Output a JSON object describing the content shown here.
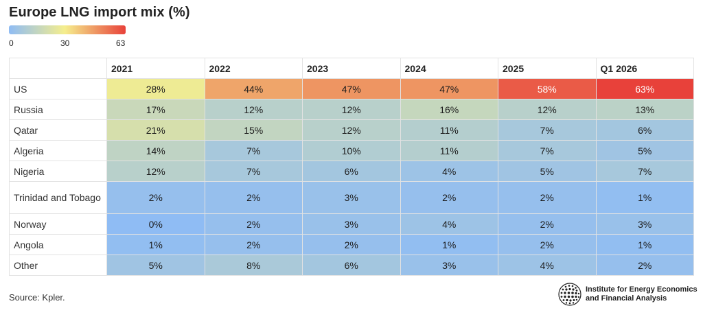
{
  "chart_data": {
    "type": "heatmap",
    "title": "Europe LNG import mix (%)",
    "columns": [
      "2021",
      "2022",
      "2023",
      "2024",
      "2025",
      "Q1 2026"
    ],
    "rows": [
      {
        "label": "US",
        "values": [
          28,
          44,
          47,
          47,
          58,
          63
        ]
      },
      {
        "label": "Russia",
        "values": [
          17,
          12,
          12,
          16,
          12,
          13
        ]
      },
      {
        "label": "Qatar",
        "values": [
          21,
          15,
          12,
          11,
          7,
          6
        ]
      },
      {
        "label": "Algeria",
        "values": [
          14,
          7,
          10,
          11,
          7,
          5
        ]
      },
      {
        "label": "Nigeria",
        "values": [
          12,
          7,
          6,
          4,
          5,
          7
        ]
      },
      {
        "label": "Trinidad and Tobago",
        "values": [
          2,
          2,
          3,
          2,
          2,
          1
        ]
      },
      {
        "label": "Norway",
        "values": [
          0,
          2,
          3,
          4,
          2,
          3
        ]
      },
      {
        "label": "Angola",
        "values": [
          1,
          2,
          2,
          1,
          2,
          1
        ]
      },
      {
        "label": "Other",
        "values": [
          5,
          8,
          6,
          3,
          4,
          2
        ]
      }
    ],
    "value_suffix": "%",
    "color_scale": {
      "min": 0,
      "mid": 30,
      "max": 63,
      "tick_labels": [
        "0",
        "30",
        "63"
      ],
      "colors": [
        "#8fbcf4",
        "#f5ee8d",
        "#e8413a"
      ]
    }
  },
  "source": "Source: Kpler.",
  "logo": {
    "line1": "Institute for Energy Economics",
    "line2": "and Financial Analysis"
  }
}
